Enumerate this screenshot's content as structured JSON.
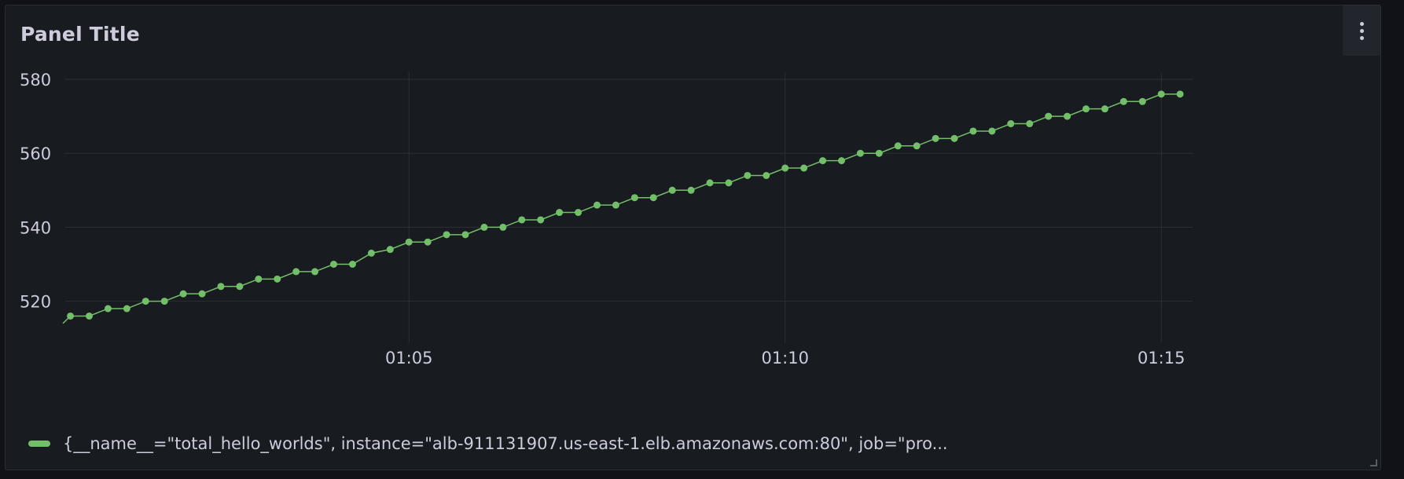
{
  "panel": {
    "title": "Panel Title",
    "menu_icon": "vertical-dots-icon"
  },
  "chart_data": {
    "type": "line",
    "title": "Panel Title",
    "xlabel": "",
    "ylabel": "",
    "ylim": [
      510,
      582
    ],
    "yticks": [
      520,
      540,
      560,
      580
    ],
    "xticks": [
      "01:05",
      "01:10",
      "01:15"
    ],
    "grid": true,
    "legend_placement": "bottom-left",
    "series": [
      {
        "name": "{__name__=\"total_hello_worlds\", instance=\"alb-911131907.us-east-1.elb.amazonaws.com:80\", job=\"pro...",
        "color": "#73bf69",
        "x": [
          0.4,
          0.5,
          0.75,
          1.0,
          1.25,
          1.5,
          1.75,
          2.0,
          2.25,
          2.5,
          2.75,
          3.0,
          3.25,
          3.5,
          3.75,
          4.0,
          4.25,
          4.5,
          4.75,
          5.0,
          5.25,
          5.5,
          5.75,
          6.0,
          6.25,
          6.5,
          6.75,
          7.0,
          7.25,
          7.5,
          7.75,
          8.0,
          8.25,
          8.5,
          8.75,
          9.0,
          9.25,
          9.5,
          9.75,
          10.0,
          10.25,
          10.5,
          10.75,
          11.0,
          11.25,
          11.5,
          11.75,
          12.0,
          12.25,
          12.5,
          12.75,
          13.0,
          13.25,
          13.5,
          13.75,
          14.0,
          14.25,
          14.5,
          14.75,
          15.0,
          15.25
        ],
        "values": [
          514,
          516,
          516,
          518,
          518,
          520,
          520,
          522,
          522,
          524,
          524,
          526,
          526,
          528,
          528,
          530,
          530,
          533,
          534,
          536,
          536,
          538,
          538,
          540,
          540,
          542,
          542,
          544,
          544,
          546,
          546,
          548,
          548,
          550,
          550,
          552,
          552,
          554,
          554,
          556,
          556,
          558,
          558,
          560,
          560,
          562,
          562,
          564,
          564,
          566,
          566,
          568,
          568,
          570,
          570,
          572,
          572,
          574,
          574,
          576,
          576
        ],
        "markers_from_index": 1
      }
    ]
  }
}
